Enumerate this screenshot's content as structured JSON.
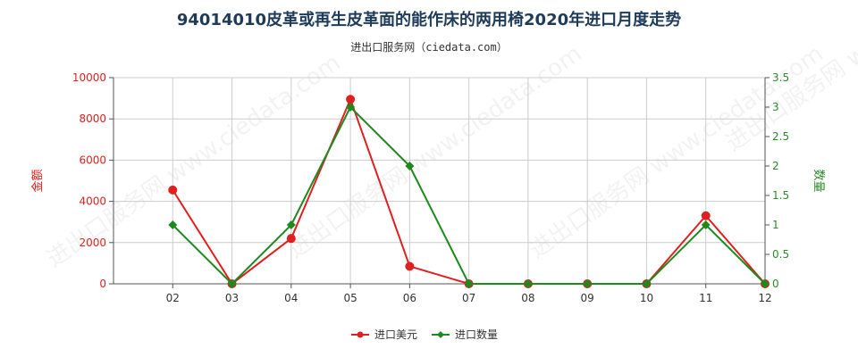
{
  "title": "94014010皮革或再生皮革面的能作床的两用椅2020年进口月度走势",
  "subtitle": "进出口服务网（ciedata.com）",
  "watermark": "进出口服务网 www.ciedata.com",
  "colors": {
    "left_axis": "#e02020",
    "right_axis": "#2a8a2a",
    "grid": "#cccccc",
    "axis": "#555555"
  },
  "chart_data": {
    "type": "line",
    "categories": [
      "02",
      "03",
      "04",
      "05",
      "06",
      "07",
      "08",
      "09",
      "10",
      "11",
      "12"
    ],
    "series": [
      {
        "name": "进口美元",
        "axis": "left",
        "color": "#e02020",
        "values": [
          4550,
          0,
          2200,
          8950,
          850,
          0,
          0,
          0,
          0,
          3300,
          0
        ]
      },
      {
        "name": "进口数量",
        "axis": "right",
        "color": "#1e8a1e",
        "values": [
          1,
          0,
          1,
          3,
          2,
          0,
          0,
          0,
          0,
          1,
          0
        ]
      }
    ],
    "y_left": {
      "label": "金额",
      "ticks": [
        0,
        2000,
        4000,
        6000,
        8000,
        10000
      ],
      "ylim": [
        0,
        10000
      ]
    },
    "y_right": {
      "label": "数量",
      "ticks": [
        "0",
        "0.5",
        "1",
        "1.5",
        "2",
        "2.5",
        "3",
        "3.5"
      ],
      "ylim": [
        0,
        3.5
      ]
    },
    "legend": [
      "进口美元",
      "进口数量"
    ],
    "legend_position": "bottom",
    "grid": true
  }
}
